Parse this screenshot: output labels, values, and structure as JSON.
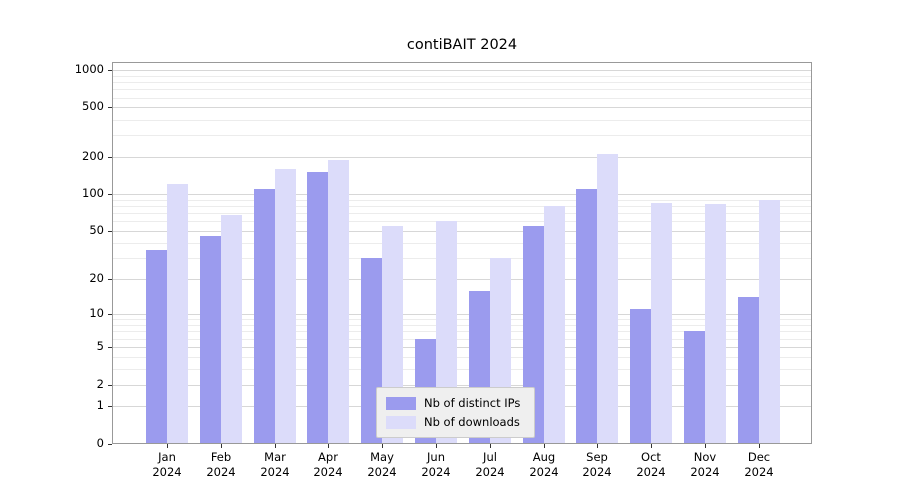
{
  "chart_data": {
    "type": "bar",
    "title": "contiBAIT 2024",
    "x_months": [
      "Jan",
      "Feb",
      "Mar",
      "Apr",
      "May",
      "Jun",
      "Jul",
      "Aug",
      "Sep",
      "Oct",
      "Nov",
      "Dec"
    ],
    "x_year": "2024",
    "categories": [
      "Jan 2024",
      "Feb 2024",
      "Mar 2024",
      "Apr 2024",
      "May 2024",
      "Jun 2024",
      "Jul 2024",
      "Aug 2024",
      "Sep 2024",
      "Oct 2024",
      "Nov 2024",
      "Dec 2024"
    ],
    "series": [
      {
        "name": "Nb of distinct IPs",
        "color": "#9b9bee",
        "values": [
          35,
          46,
          110,
          150,
          30,
          6,
          16,
          55,
          110,
          11,
          7,
          14
        ]
      },
      {
        "name": "Nb of downloads",
        "color": "#dcdcfa",
        "values": [
          120,
          68,
          160,
          190,
          55,
          60,
          30,
          80,
          210,
          85,
          84,
          90
        ]
      }
    ],
    "y_ticks": [
      0,
      1,
      2,
      5,
      10,
      20,
      50,
      100,
      200,
      500,
      1000
    ],
    "y_scale": "log1p",
    "ylim": [
      0,
      1000
    ],
    "grid": true,
    "legend_position": "lower center",
    "colors": {
      "legend_bg": "#efefef",
      "legend_border": "#cccccc",
      "grid_major": "#d7d7d7",
      "grid_minor": "#ececec",
      "axis_frame": "#999999",
      "tick": "#333333"
    }
  }
}
